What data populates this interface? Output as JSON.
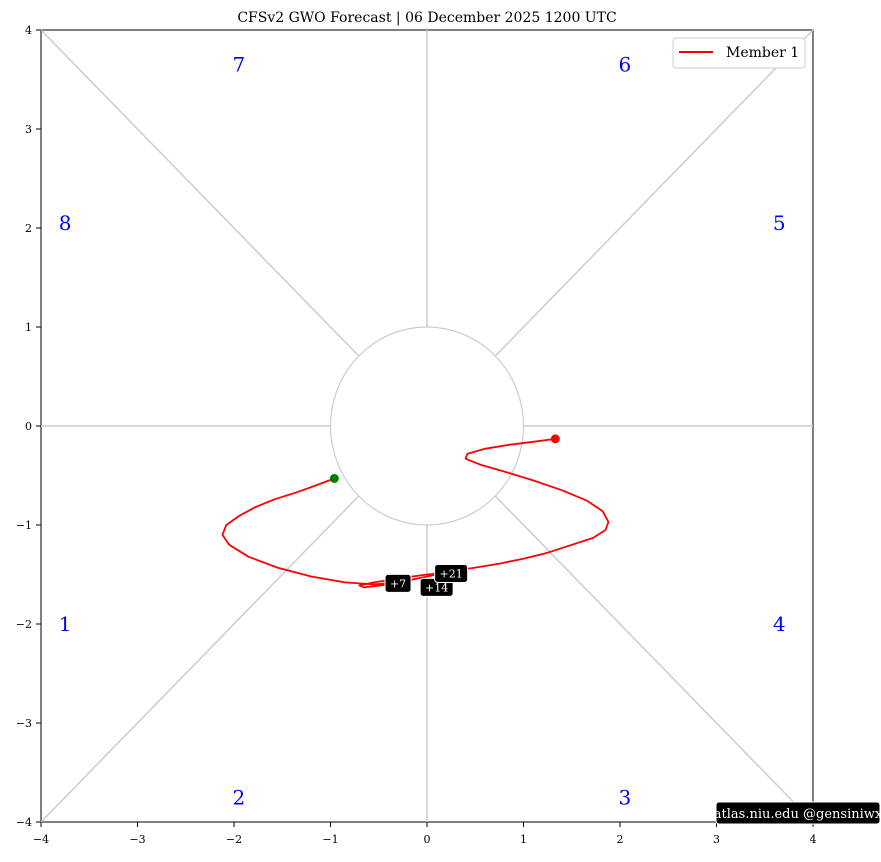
{
  "chart_data": {
    "type": "line",
    "title": "CFSv2 GWO Forecast   |   06  December  2025 1200 UTC",
    "xlim": [
      -4,
      4
    ],
    "ylim": [
      -4,
      4
    ],
    "xticks": [
      -4,
      -3,
      -2,
      -1,
      0,
      1,
      2,
      3,
      4
    ],
    "yticks": [
      -4,
      -3,
      -2,
      -1,
      0,
      1,
      2,
      3,
      4
    ],
    "xtick_labels": [
      "−4",
      "−3",
      "−2",
      "−1",
      "0",
      "1",
      "2",
      "3",
      "4"
    ],
    "ytick_labels": [
      "−4",
      "−3",
      "−2",
      "−1",
      "0",
      "1",
      "2",
      "3",
      "4"
    ],
    "phase_labels": [
      {
        "text": "1",
        "x": -3.75,
        "y": -2.0
      },
      {
        "text": "2",
        "x": -1.95,
        "y": -3.75
      },
      {
        "text": "3",
        "x": 2.05,
        "y": -3.75
      },
      {
        "text": "4",
        "x": 3.65,
        "y": -2.0
      },
      {
        "text": "5",
        "x": 3.65,
        "y": 2.05
      },
      {
        "text": "6",
        "x": 2.05,
        "y": 3.65
      },
      {
        "text": "7",
        "x": -1.95,
        "y": 3.65
      },
      {
        "text": "8",
        "x": -3.75,
        "y": 2.05
      }
    ],
    "series": [
      {
        "name": "Member 1",
        "color": "#ff0000",
        "start_color": "#ff0000",
        "end_color": "#008000",
        "x": [
          1.33,
          1.1,
          0.85,
          0.6,
          0.42,
          0.4,
          0.55,
          0.8,
          1.1,
          1.4,
          1.65,
          1.82,
          1.88,
          1.85,
          1.72,
          1.5,
          1.25,
          1.0,
          0.75,
          0.5,
          0.3,
          0.12,
          0.0,
          -0.15,
          -0.35,
          -0.55,
          -0.7,
          -0.65,
          -0.4,
          -0.15,
          0.0,
          0.1,
          0.05,
          -0.1,
          -0.3,
          -0.55,
          -0.85,
          -1.2,
          -1.55,
          -1.85,
          -2.05,
          -2.12,
          -2.08,
          -1.95,
          -1.78,
          -1.58,
          -1.35,
          -1.15,
          -0.96
        ],
        "y": [
          -0.13,
          -0.16,
          -0.19,
          -0.23,
          -0.28,
          -0.33,
          -0.39,
          -0.46,
          -0.55,
          -0.65,
          -0.75,
          -0.86,
          -0.97,
          -1.05,
          -1.13,
          -1.2,
          -1.28,
          -1.34,
          -1.39,
          -1.43,
          -1.46,
          -1.49,
          -1.5,
          -1.52,
          -1.55,
          -1.58,
          -1.61,
          -1.63,
          -1.6,
          -1.55,
          -1.52,
          -1.5,
          -1.51,
          -1.54,
          -1.58,
          -1.6,
          -1.58,
          -1.52,
          -1.43,
          -1.32,
          -1.2,
          -1.1,
          -1.0,
          -0.91,
          -0.82,
          -0.74,
          -0.67,
          -0.6,
          -0.53
        ]
      }
    ],
    "day_labels": [
      {
        "text": "+7",
        "x": -0.3,
        "y": -1.59
      },
      {
        "text": "+14",
        "x": 0.1,
        "y": -1.63
      },
      {
        "text": "+21",
        "x": 0.25,
        "y": -1.49
      }
    ],
    "legend_position": "top-right",
    "grid": false
  },
  "credit": "atlas.niu.edu  @gensiniwx"
}
